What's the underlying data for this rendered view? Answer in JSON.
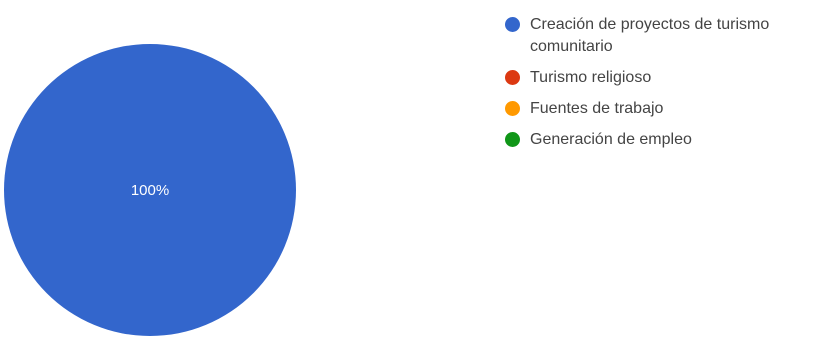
{
  "chart_data": {
    "type": "pie",
    "categories": [
      "Creación de proyectos de turismo comunitario",
      "Turismo religioso",
      "Fuentes de trabajo",
      "Generación de empleo"
    ],
    "values": [
      100,
      0,
      0,
      0
    ],
    "data_labels": [
      "100%",
      "",
      "",
      ""
    ],
    "colors": [
      "#3366cc",
      "#dc3912",
      "#ff9900",
      "#109618"
    ],
    "legend_position": "right"
  }
}
